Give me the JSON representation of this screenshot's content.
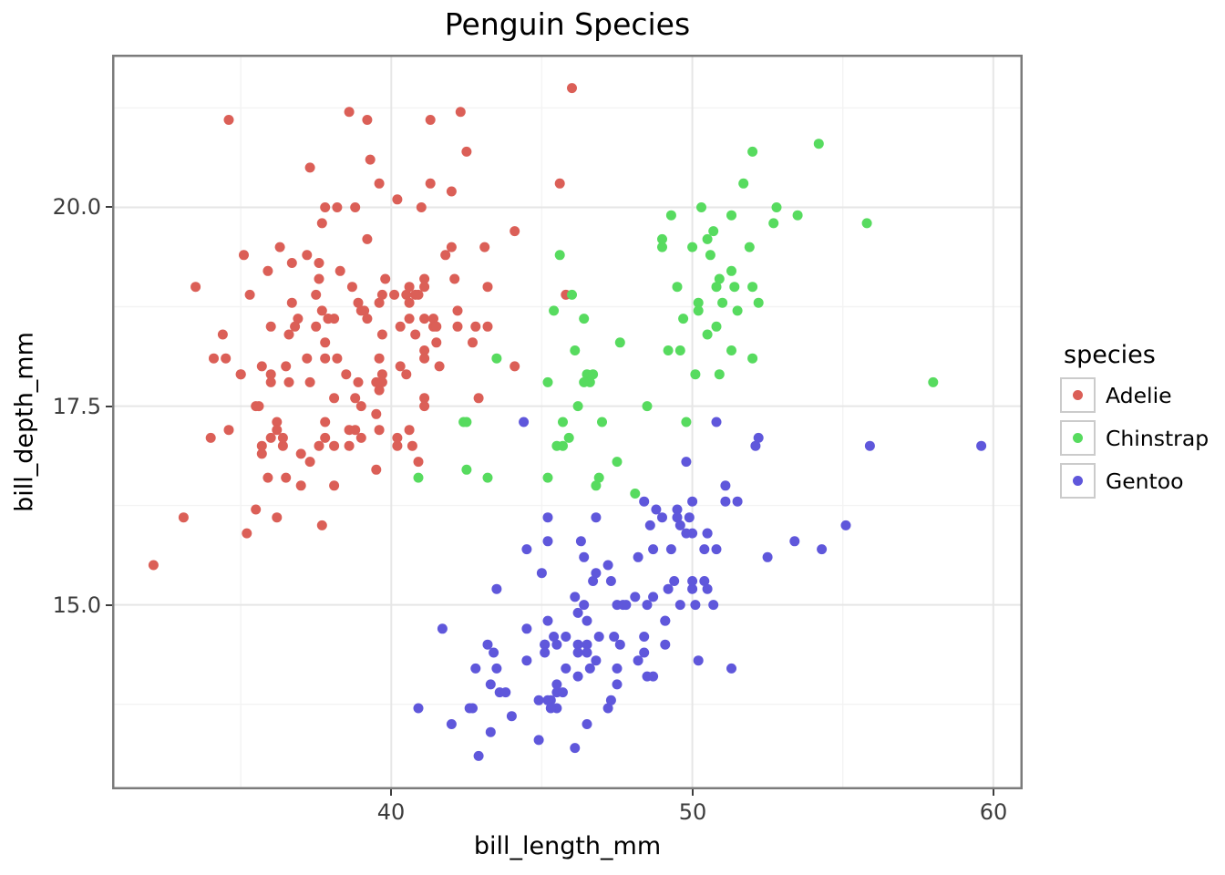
{
  "legend": {
    "title": "species",
    "entries": [
      {
        "label": "Adelie",
        "color": "#db5f57"
      },
      {
        "label": "Chinstrap",
        "color": "#57db5f"
      },
      {
        "label": "Gentoo",
        "color": "#5f57db"
      }
    ]
  },
  "chart_data": {
    "type": "scatter",
    "title": "Penguin Species",
    "xlabel": "bill_length_mm",
    "ylabel": "bill_depth_mm",
    "xlim": [
      30.725,
      60.975
    ],
    "ylim": [
      12.68,
      21.92
    ],
    "x_major_ticks": [
      40,
      50,
      60
    ],
    "x_tick_labels": [
      "40",
      "50",
      "60"
    ],
    "y_major_ticks": [
      15.0,
      17.5,
      20.0
    ],
    "y_tick_labels": [
      "15.0",
      "17.5",
      "20.0"
    ],
    "x_minor_ticks": [
      35,
      45,
      55
    ],
    "y_minor_ticks": [
      13.75,
      16.25,
      18.75,
      21.25
    ],
    "grid": true,
    "legend_position": "right-outside",
    "background_color": "#ffffff",
    "grid_major_color": "#e6e6e6",
    "grid_minor_color": "#f3f3f3",
    "panel_border_color": "#7b7b7b",
    "tick_color": "#3d3d3d",
    "marker_diameter_px": 11,
    "series": [
      {
        "name": "Adelie",
        "color": "#db5f57",
        "x": [
          39.1,
          39.5,
          40.3,
          36.7,
          39.3,
          38.9,
          39.2,
          34.1,
          42.0,
          37.8,
          37.8,
          41.1,
          38.6,
          34.6,
          36.6,
          38.7,
          42.5,
          34.4,
          46.0,
          37.8,
          37.7,
          35.9,
          38.2,
          38.8,
          35.3,
          40.6,
          40.5,
          37.9,
          40.5,
          39.5,
          37.2,
          39.5,
          40.9,
          36.4,
          39.2,
          38.8,
          42.2,
          37.6,
          39.8,
          36.5,
          40.8,
          36.0,
          44.1,
          37.0,
          39.6,
          41.1,
          37.5,
          36.0,
          42.3,
          39.6,
          40.1,
          35.0,
          42.0,
          34.5,
          41.4,
          39.0,
          40.6,
          36.5,
          37.6,
          35.7,
          41.3,
          37.6,
          41.1,
          36.4,
          41.6,
          35.5,
          41.1,
          35.9,
          41.8,
          33.5,
          39.7,
          39.6,
          45.8,
          35.5,
          42.8,
          40.9,
          37.2,
          36.2,
          42.1,
          34.6,
          42.9,
          36.7,
          35.1,
          37.3,
          41.3,
          36.3,
          36.9,
          38.3,
          38.9,
          35.7,
          41.1,
          34.0,
          39.6,
          36.2,
          40.8,
          38.1,
          40.3,
          33.1,
          43.2,
          35.0,
          41.0,
          37.7,
          37.8,
          37.9,
          39.7,
          38.6,
          38.2,
          38.1,
          43.2,
          38.1,
          45.6,
          39.7,
          42.2,
          39.6,
          42.7,
          38.6,
          37.3,
          35.7,
          41.1,
          36.2,
          37.7,
          40.2,
          41.4,
          35.2,
          40.6,
          38.8,
          41.5,
          39.0,
          44.1,
          38.5,
          43.1,
          36.8,
          37.5,
          38.1,
          41.1,
          35.6,
          40.2,
          37.0,
          39.7,
          40.2,
          40.6,
          32.1,
          40.7,
          37.3,
          39.0,
          39.2,
          36.6,
          36.0,
          37.8,
          36.0,
          41.5
        ],
        "y": [
          18.7,
          17.4,
          18.0,
          19.3,
          20.6,
          17.8,
          19.6,
          18.1,
          20.2,
          17.1,
          17.3,
          17.6,
          21.2,
          21.1,
          17.8,
          19.0,
          20.7,
          18.4,
          21.5,
          18.3,
          18.7,
          19.2,
          18.1,
          17.2,
          18.9,
          18.6,
          17.9,
          18.6,
          18.9,
          16.7,
          18.1,
          17.8,
          18.9,
          17.0,
          21.1,
          20.0,
          18.5,
          19.3,
          19.1,
          18.0,
          18.4,
          18.5,
          19.7,
          16.9,
          18.8,
          19.0,
          18.9,
          17.9,
          21.2,
          17.7,
          18.9,
          17.9,
          19.5,
          18.1,
          18.6,
          17.5,
          18.8,
          16.6,
          19.1,
          16.9,
          21.1,
          17.0,
          18.2,
          17.1,
          18.0,
          16.2,
          19.1,
          16.6,
          19.4,
          19.0,
          18.4,
          17.2,
          18.9,
          17.5,
          18.5,
          16.8,
          19.4,
          16.1,
          19.1,
          17.2,
          17.6,
          18.8,
          19.4,
          17.8,
          20.3,
          19.5,
          18.6,
          19.2,
          18.8,
          18.0,
          18.1,
          17.1,
          18.1,
          17.3,
          18.9,
          18.6,
          18.5,
          16.1,
          18.5,
          17.9,
          20.0,
          16.0,
          20.0,
          18.6,
          18.9,
          17.2,
          20.0,
          17.0,
          19.0,
          16.5,
          20.3,
          17.8,
          18.7,
          20.3,
          18.3,
          17.0,
          20.5,
          17.0,
          18.6,
          17.2,
          19.8,
          17.0,
          18.5,
          15.9,
          19.0,
          17.6,
          18.3,
          17.1,
          18.0,
          17.9,
          19.5,
          18.5,
          18.5,
          17.6,
          17.5,
          17.5,
          20.1,
          16.5,
          17.9,
          17.1,
          17.2,
          15.5,
          17.0,
          16.8,
          18.7,
          18.6,
          18.4,
          17.8,
          18.1,
          17.1,
          18.5
        ]
      },
      {
        "name": "Chinstrap",
        "color": "#57db5f",
        "x": [
          46.5,
          50.0,
          51.3,
          45.4,
          52.7,
          45.2,
          46.1,
          51.3,
          46.0,
          51.3,
          46.6,
          51.7,
          47.0,
          52.0,
          45.9,
          50.5,
          50.3,
          58.0,
          46.4,
          49.2,
          42.4,
          48.5,
          43.2,
          50.6,
          46.7,
          52.0,
          50.5,
          49.5,
          46.4,
          52.8,
          40.9,
          54.2,
          42.5,
          51.0,
          49.7,
          47.5,
          47.6,
          52.0,
          46.9,
          53.5,
          49.0,
          46.2,
          50.9,
          45.5,
          50.9,
          50.8,
          50.1,
          49.0,
          51.5,
          49.8,
          48.1,
          51.4,
          45.7,
          50.7,
          42.5,
          52.2,
          45.2,
          49.3,
          50.2,
          45.6,
          51.9,
          46.8,
          45.7,
          55.8,
          43.5,
          49.6,
          50.8,
          50.2
        ],
        "y": [
          17.9,
          19.5,
          19.2,
          18.7,
          19.8,
          17.8,
          18.2,
          18.2,
          18.9,
          19.9,
          17.8,
          20.3,
          17.3,
          18.1,
          17.1,
          19.6,
          20.0,
          17.8,
          18.6,
          18.2,
          17.3,
          17.5,
          16.6,
          19.4,
          17.9,
          19.0,
          18.4,
          19.0,
          17.8,
          20.0,
          16.6,
          20.8,
          16.7,
          18.8,
          18.6,
          16.8,
          18.3,
          20.7,
          16.6,
          19.9,
          19.5,
          17.5,
          19.1,
          17.0,
          17.9,
          18.5,
          17.9,
          19.6,
          18.7,
          17.3,
          16.4,
          19.0,
          17.3,
          19.7,
          17.3,
          18.8,
          16.6,
          19.9,
          18.8,
          19.4,
          19.5,
          16.5,
          17.0,
          19.8,
          18.1,
          18.2,
          19.0,
          18.7
        ]
      },
      {
        "name": "Gentoo",
        "color": "#5f57db",
        "x": [
          46.1,
          50.0,
          48.7,
          50.0,
          47.6,
          46.5,
          45.4,
          46.7,
          43.3,
          46.8,
          40.9,
          49.0,
          45.5,
          48.4,
          45.8,
          49.3,
          42.0,
          49.2,
          46.2,
          48.7,
          50.2,
          45.1,
          46.5,
          46.3,
          42.9,
          46.1,
          44.5,
          47.8,
          48.2,
          50.0,
          47.3,
          42.8,
          45.1,
          59.6,
          49.1,
          48.4,
          42.6,
          44.4,
          44.0,
          48.7,
          42.7,
          49.6,
          45.3,
          49.6,
          50.5,
          43.6,
          45.5,
          50.5,
          44.9,
          45.2,
          46.6,
          48.5,
          45.1,
          50.1,
          46.5,
          45.0,
          43.8,
          45.5,
          43.2,
          50.4,
          45.3,
          46.2,
          45.7,
          54.3,
          45.8,
          49.8,
          46.2,
          49.5,
          43.5,
          50.7,
          47.7,
          46.4,
          48.2,
          46.5,
          46.4,
          48.6,
          47.5,
          51.1,
          45.2,
          45.2,
          49.1,
          52.5,
          47.4,
          50.0,
          44.9,
          50.8,
          43.4,
          51.3,
          47.5,
          52.1,
          47.5,
          52.2,
          45.5,
          49.5,
          44.5,
          50.8,
          49.4,
          46.9,
          48.4,
          51.1,
          48.5,
          55.9,
          47.2,
          49.1,
          47.3,
          46.8,
          41.7,
          53.4,
          43.3,
          48.1,
          50.5,
          49.8,
          43.5,
          51.5,
          46.2,
          55.1,
          44.5,
          48.8,
          47.2,
          46.8,
          50.4,
          45.2,
          49.9
        ],
        "y": [
          13.2,
          16.3,
          14.1,
          15.2,
          14.5,
          13.5,
          14.6,
          15.3,
          13.4,
          15.4,
          13.7,
          16.1,
          13.7,
          14.6,
          14.6,
          15.7,
          13.5,
          15.2,
          14.5,
          15.1,
          14.3,
          14.5,
          14.5,
          15.8,
          13.1,
          15.1,
          14.3,
          15.0,
          14.3,
          15.3,
          15.3,
          14.2,
          14.5,
          17.0,
          14.8,
          16.3,
          13.7,
          17.3,
          13.6,
          15.7,
          13.7,
          16.0,
          13.7,
          15.0,
          15.9,
          13.9,
          13.9,
          15.9,
          13.3,
          15.8,
          14.2,
          14.1,
          14.4,
          15.0,
          14.4,
          15.4,
          13.9,
          14.0,
          14.5,
          15.3,
          13.8,
          14.9,
          13.9,
          15.7,
          14.2,
          16.8,
          14.4,
          16.2,
          14.2,
          15.0,
          15.0,
          15.6,
          15.6,
          14.8,
          15.0,
          16.0,
          14.2,
          16.3,
          13.8,
          16.1,
          14.5,
          15.6,
          14.6,
          15.9,
          13.8,
          17.3,
          14.4,
          14.2,
          14.0,
          17.0,
          15.0,
          17.1,
          14.5,
          16.1,
          14.7,
          15.7,
          15.3,
          14.6,
          14.4,
          16.5,
          15.0,
          17.0,
          15.5,
          14.8,
          13.8,
          16.1,
          14.7,
          15.8,
          14.0,
          15.1,
          15.2,
          15.9,
          15.2,
          16.3,
          14.1,
          16.0,
          15.7,
          16.2,
          13.7,
          14.3,
          15.7,
          14.8,
          16.1
        ]
      }
    ]
  }
}
